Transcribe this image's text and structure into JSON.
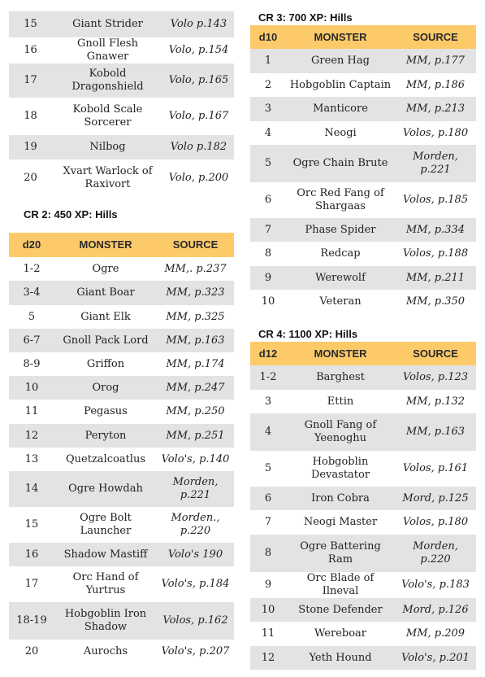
{
  "headers": {
    "monster": "MONSTER",
    "source": "SOURCE"
  },
  "left_top": [
    [
      "15",
      "Giant Strider",
      "Volo p.143"
    ],
    [
      "16",
      "Gnoll Flesh Gnawer",
      "Volo, p.154"
    ],
    [
      "17",
      "Kobold Dragonshield",
      "Volo, p.165"
    ],
    [
      "18",
      "Kobold Scale Sorcerer",
      "Volo, p.167"
    ],
    [
      "19",
      "Nilbog",
      "Volo p.182"
    ],
    [
      "20",
      "Xvart Warlock of Raxivort",
      "Volo, p.200"
    ]
  ],
  "cr2": {
    "title": "CR 2: 450 XP: Hills",
    "die": "d20",
    "rows": [
      [
        "1-2",
        "Ogre",
        "MM,. p.237"
      ],
      [
        "3-4",
        "Giant Boar",
        "MM, p.323"
      ],
      [
        "5",
        "Giant Elk",
        "MM, p.325"
      ],
      [
        "6-7",
        "Gnoll Pack Lord",
        "MM, p.163"
      ],
      [
        "8-9",
        "Griffon",
        "MM, p.174"
      ],
      [
        "10",
        "Orog",
        "MM, p.247"
      ],
      [
        "11",
        "Pegasus",
        "MM, p.250"
      ],
      [
        "12",
        "Peryton",
        "MM, p.251"
      ],
      [
        "13",
        "Quetzalcoatlus",
        "Volo's, p.140"
      ],
      [
        "14",
        "Ogre Howdah",
        "Morden, p.221"
      ],
      [
        "15",
        "Ogre Bolt Launcher",
        "Morden., p.220"
      ],
      [
        "16",
        "Shadow Mastiff",
        "Volo's 190"
      ],
      [
        "17",
        "Orc Hand of Yurtrus",
        "Volo's, p.184"
      ],
      [
        "18-19",
        "Hobgoblin Iron Shadow",
        "Volos, p.162"
      ],
      [
        "20",
        "Aurochs",
        "Volo's, p.207"
      ]
    ]
  },
  "cr3": {
    "title": "CR 3: 700 XP: Hills",
    "die": "d10",
    "rows": [
      [
        "1",
        "Green Hag",
        "MM, p.177"
      ],
      [
        "2",
        "Hobgoblin Captain",
        "MM, p.186"
      ],
      [
        "3",
        "Manticore",
        "MM, p.213"
      ],
      [
        "4",
        "Neogi",
        "Volos, p.180"
      ],
      [
        "5",
        "Ogre Chain Brute",
        "Morden, p.221"
      ],
      [
        "6",
        "Orc Red Fang of Shargaas",
        "Volos, p.185"
      ],
      [
        "7",
        "Phase Spider",
        "MM, p.334"
      ],
      [
        "8",
        "Redcap",
        "Volos, p.188"
      ],
      [
        "9",
        "Werewolf",
        "MM, p.211"
      ],
      [
        "10",
        "Veteran",
        "MM, p.350"
      ]
    ]
  },
  "cr4": {
    "title": "CR 4: 1100 XP: Hills",
    "die": "d12",
    "rows": [
      [
        "1-2",
        "Barghest",
        "Volos, p.123"
      ],
      [
        "3",
        "Ettin",
        "MM, p.132"
      ],
      [
        "4",
        "Gnoll Fang of Yeenoghu",
        "MM, p.163"
      ],
      [
        "5",
        "Hobgoblin Devastator",
        "Volos, p.161"
      ],
      [
        "6",
        "Iron Cobra",
        "Mord, p.125"
      ],
      [
        "7",
        "Neogi Master",
        "Volos, p.180"
      ],
      [
        "8",
        "Ogre Battering Ram",
        "Morden, p.220"
      ],
      [
        "9",
        "Orc Blade of Ilneval",
        "Volo's, p.183"
      ],
      [
        "10",
        "Stone Defender",
        "Mord, p.126"
      ],
      [
        "11",
        "Wereboar",
        "MM, p.209"
      ],
      [
        "12",
        "Yeth Hound",
        "Volo's, p.201"
      ]
    ]
  }
}
